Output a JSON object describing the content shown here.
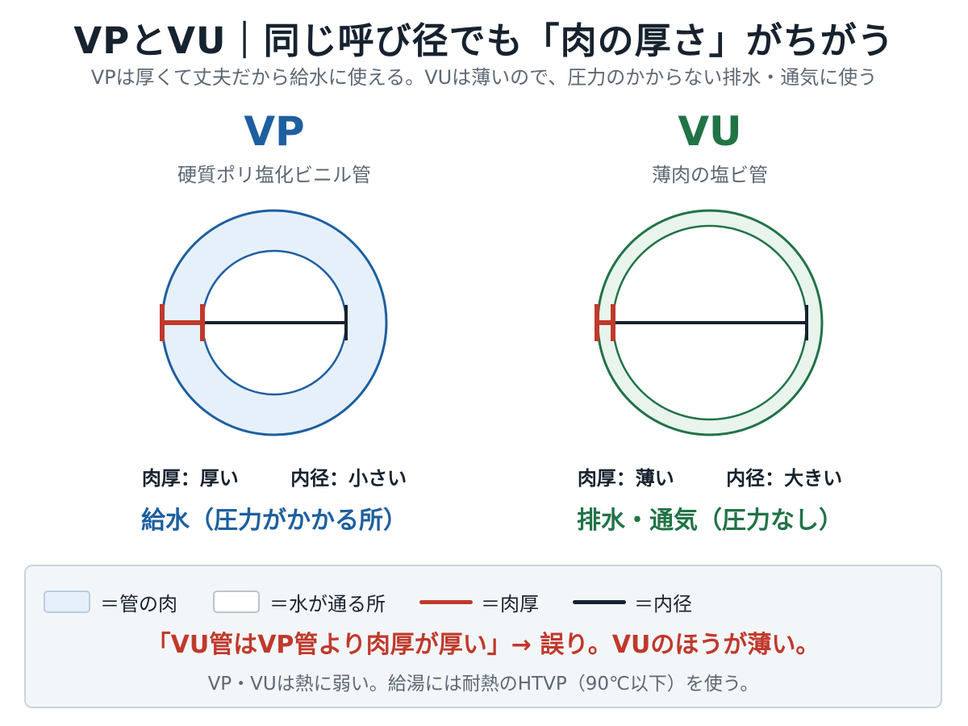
{
  "title": "VPとVU｜同じ呼び径でも「肉の厚さ」がちがう",
  "subtitle": "VPは厚くて丈夫だから給水に使える。VUは薄いので、圧力のかからない排水・通気に使う",
  "vp": {
    "name": "VP",
    "full_name": "硬質ポリ塩化ビニル管",
    "thickness": "肉厚：厚い",
    "inner": "内径：小さい",
    "usage": "給水（圧力がかかる所）",
    "color": "#1e5fa0",
    "fill": "#e6f0fa"
  },
  "vu": {
    "name": "VU",
    "full_name": "薄肉の塩ビ管",
    "thickness": "肉厚：薄い",
    "inner": "内径：大きい",
    "usage": "排水・通気（圧力なし）",
    "color": "#217346",
    "fill": "#e8f4ec"
  },
  "legend": {
    "wall": "＝管の肉",
    "water": "＝水が通る所",
    "thickness": "＝肉厚",
    "inner": "＝内径",
    "thickness_color": "#c0392b",
    "inner_color": "#17222f"
  },
  "warning": "「VU管はVP管より肉厚が厚い」→ 誤り。VUのほうが薄い。",
  "note": "VP・VUは熱に弱い。給湯には耐熱のHTVP（90℃以下）を使う。"
}
